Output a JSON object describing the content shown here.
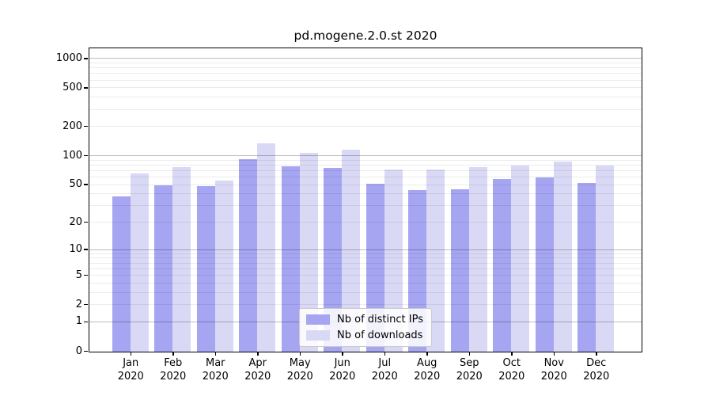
{
  "chart_data": {
    "type": "bar",
    "title": "pd.mogene.2.0.st 2020",
    "categories": [
      "Jan",
      "Feb",
      "Mar",
      "Apr",
      "May",
      "Jun",
      "Jul",
      "Aug",
      "Sep",
      "Oct",
      "Nov",
      "Dec"
    ],
    "category_year": "2020",
    "series": [
      {
        "name": "Nb of distinct IPs",
        "color": "#a5a5f1",
        "values": [
          38,
          50,
          49,
          92,
          78,
          76,
          52,
          44,
          45,
          58,
          60,
          53
        ]
      },
      {
        "name": "Nb of downloads",
        "color": "#d9d9f6",
        "values": [
          66,
          77,
          56,
          136,
          107,
          117,
          73,
          72,
          77,
          80,
          88,
          80
        ]
      }
    ],
    "xlabel": "",
    "ylabel": "",
    "y_scale": "log1p",
    "y_ticks": [
      0,
      1,
      2,
      5,
      10,
      20,
      50,
      100,
      200,
      500,
      1000
    ],
    "ylim": [
      0,
      1250
    ],
    "grid": "both",
    "legend_position": "lower center",
    "colors": {
      "distinct_ips_bar": "#a5a5f1",
      "downloads_bar": "#d9d9f6",
      "major_grid": "#c2c2c2",
      "minor_grid": "#ebebeb",
      "axis": "#000000",
      "background": "#ffffff"
    }
  }
}
